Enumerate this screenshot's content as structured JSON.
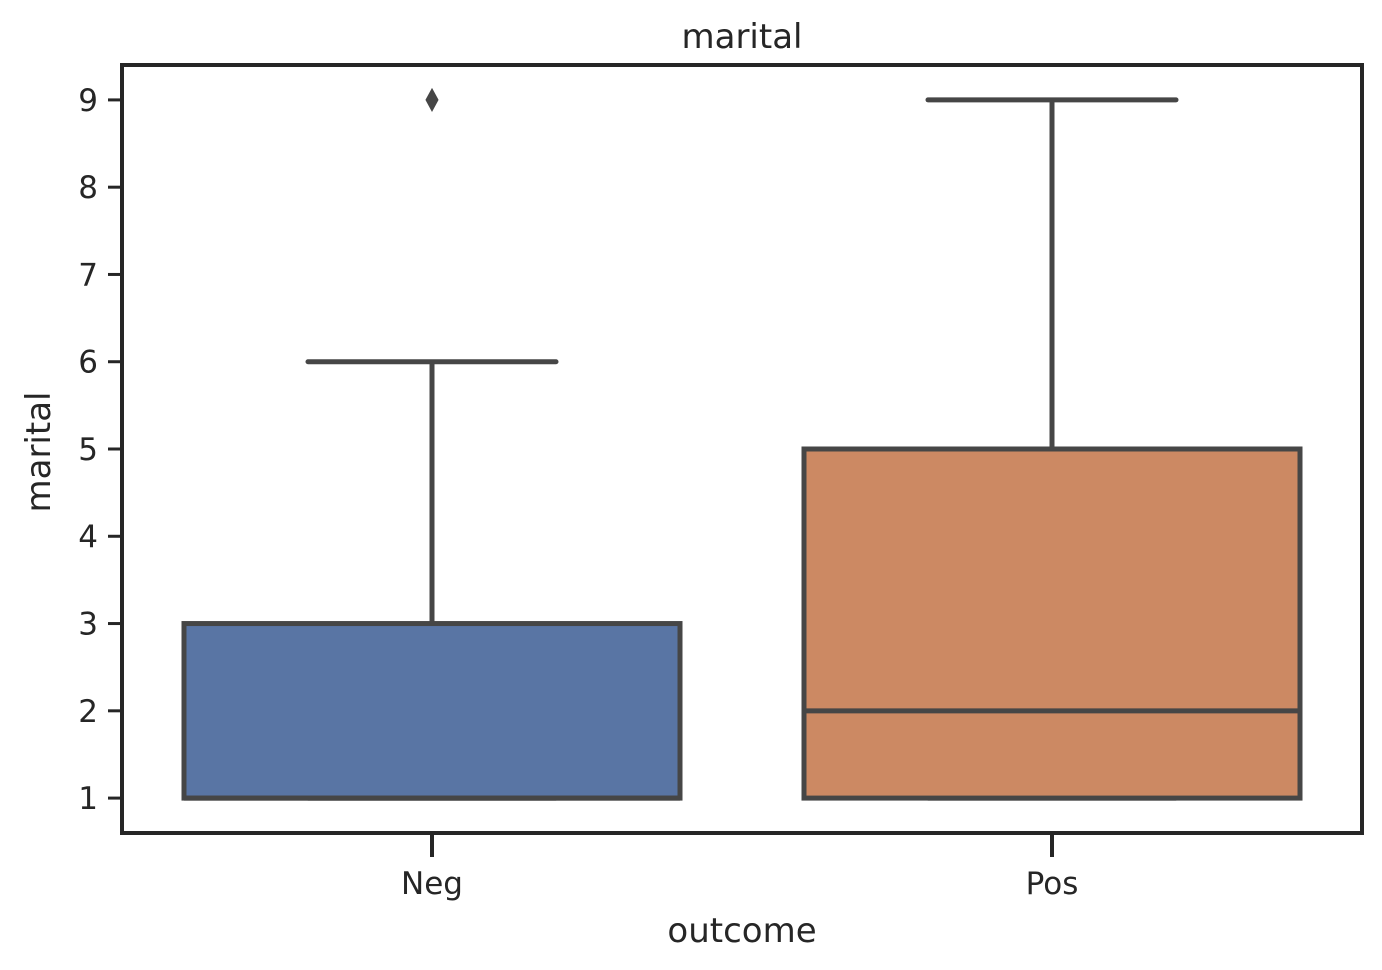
{
  "chart_data": {
    "type": "box",
    "title": "marital",
    "xlabel": "outcome",
    "ylabel": "marital",
    "ylim": [
      0.6,
      9.4
    ],
    "yticks": [
      1,
      2,
      3,
      4,
      5,
      6,
      7,
      8,
      9
    ],
    "grid": false,
    "categories": [
      "Neg",
      "Pos"
    ],
    "boxes": [
      {
        "category": "Neg",
        "color": "#5975a4",
        "whisker_low": 1,
        "q1": 1,
        "median": 1,
        "q3": 3,
        "whisker_high": 6,
        "outliers": [
          9
        ]
      },
      {
        "category": "Pos",
        "color": "#cc8963",
        "whisker_low": 1,
        "q1": 1,
        "median": 2,
        "q3": 5,
        "whisker_high": 9,
        "outliers": []
      }
    ],
    "line_color": "#464646",
    "frame_color": "#262626"
  }
}
